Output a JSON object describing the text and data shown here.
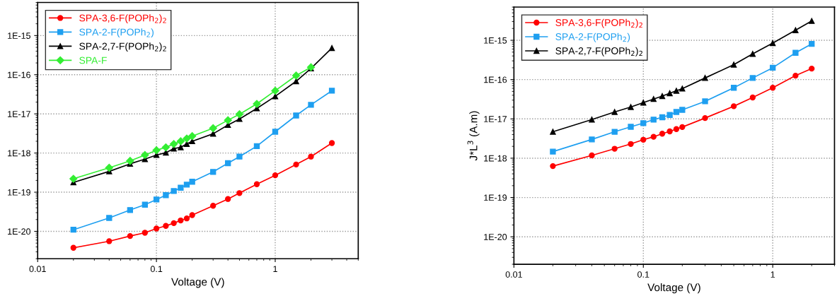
{
  "chart_data": [
    {
      "type": "line",
      "xlabel": "Voltage (V)",
      "log": "xy",
      "grid": true,
      "legend": "top left",
      "line_style": "solid",
      "xlim": [
        0.01,
        5
      ],
      "xticks": [
        0.01,
        0.1,
        1
      ],
      "ylim": [
        2e-21,
        7e-15
      ],
      "yticks": [
        {
          "value": 1e-20,
          "label": "1E-20"
        },
        {
          "value": 1e-19,
          "label": "1E-19"
        },
        {
          "value": 1e-18,
          "label": "1E-18"
        },
        {
          "value": 1e-17,
          "label": "1E-17"
        },
        {
          "value": 1e-16,
          "label": "1E-16"
        },
        {
          "value": 1e-15,
          "label": "1E-15"
        }
      ],
      "x": [
        0.02,
        0.04,
        0.06,
        0.08,
        0.1,
        0.12,
        0.14,
        0.16,
        0.18,
        0.2,
        0.3,
        0.4,
        0.5,
        0.7,
        1,
        1.5,
        2,
        3
      ],
      "series": [
        {
          "name": "SPA-3,6-F(POPh$_{2}$)$_{2}$",
          "color": "#ff0000",
          "marker": "circle",
          "values": [
            3.8e-21,
            5.6e-21,
            7.6e-21,
            9.2e-21,
            1.18e-20,
            1.38e-20,
            1.62e-20,
            1.9e-20,
            2.14e-20,
            2.6e-20,
            4.5e-20,
            6.7e-20,
            9.5e-20,
            1.6e-19,
            2.7e-19,
            5.1e-19,
            8.1e-19,
            1.8e-18
          ]
        },
        {
          "name": "SPA-2-F(POPh$_{2}$)",
          "color": "#1e9ff0",
          "marker": "square",
          "values": [
            1.1e-20,
            2.2e-20,
            3.5e-20,
            4.8e-20,
            6.5e-20,
            8.4e-20,
            1.07e-19,
            1.3e-19,
            1.56e-19,
            1.85e-19,
            3.3e-19,
            5.5e-19,
            8.1e-19,
            1.5e-18,
            3.5e-18,
            9.1e-18,
            1.7e-17,
            3.9e-17
          ]
        },
        {
          "name": "SPA-2,7-F(POPh$_{2}$)$_{2}$",
          "color": "#000000",
          "marker": "triangle",
          "values": [
            1.78e-19,
            3.4e-19,
            5.3e-19,
            7e-19,
            8.9e-19,
            1.02e-18,
            1.3e-18,
            1.4e-18,
            1.7e-18,
            2e-18,
            3.1e-18,
            5.2e-18,
            7.4e-18,
            1.38e-17,
            2.8e-17,
            6.8e-17,
            1.45e-16,
            4.8e-16
          ]
        },
        {
          "name": "SPA-F",
          "color": "#33ee33",
          "marker": "diamond",
          "x": [
            0.02,
            0.04,
            0.06,
            0.08,
            0.1,
            0.12,
            0.14,
            0.16,
            0.18,
            0.2,
            0.3,
            0.4,
            0.5,
            0.7,
            1,
            1.5,
            2
          ],
          "values": [
            2.2e-19,
            4.2e-19,
            6.3e-19,
            8.9e-19,
            1.18e-18,
            1.4e-18,
            1.7e-18,
            2e-18,
            2.35e-18,
            2.7e-18,
            4.3e-18,
            6.9e-18,
            9.8e-18,
            1.8e-17,
            3.9e-17,
            9.5e-17,
            1.55e-16
          ]
        }
      ]
    },
    {
      "type": "line",
      "xlabel": "Voltage (V)",
      "ylabel": "J*L$^{3}$ (A.m)",
      "log": "xy",
      "grid": true,
      "legend": "top left",
      "line_style": "solid",
      "xlim": [
        0.01,
        3
      ],
      "xticks": [
        0.01,
        0.1,
        1
      ],
      "ylim": [
        2e-21,
        7e-15
      ],
      "yticks": [
        {
          "value": 1e-20,
          "label": "1E-20"
        },
        {
          "value": 1e-19,
          "label": "1E-19"
        },
        {
          "value": 1e-18,
          "label": "1E-18"
        },
        {
          "value": 1e-17,
          "label": "1E-17"
        },
        {
          "value": 1e-16,
          "label": "1E-16"
        },
        {
          "value": 1e-15,
          "label": "1E-15"
        }
      ],
      "x": [
        0.02,
        0.04,
        0.06,
        0.08,
        0.1,
        0.12,
        0.14,
        0.16,
        0.18,
        0.2,
        0.3,
        0.5,
        0.7,
        1,
        1.5,
        2
      ],
      "series": [
        {
          "name": "SPA-3,6-F(POPh$_{2}$)$_{2}$",
          "color": "#ff0000",
          "marker": "circle",
          "values": [
            6.3e-19,
            1.18e-18,
            1.74e-18,
            2.3e-18,
            2.95e-18,
            3.5e-18,
            4.2e-18,
            4.8e-18,
            5.5e-18,
            6.2e-18,
            1.05e-17,
            2.1e-17,
            3.5e-17,
            6.2e-17,
            1.26e-16,
            1.9e-16
          ]
        },
        {
          "name": "SPA-2-F(POPh$_{2}$)",
          "color": "#1e9ff0",
          "marker": "square",
          "values": [
            1.47e-18,
            3e-18,
            4.7e-18,
            6.3e-18,
            7.8e-18,
            9.6e-18,
            1.1e-17,
            1.26e-17,
            1.5e-17,
            1.7e-17,
            2.8e-17,
            6.2e-17,
            1.1e-16,
            2e-16,
            4.8e-16,
            8.1e-16
          ]
        },
        {
          "name": "SPA-2,7-F(POPh$_{2}$)$_{2}$",
          "color": "#000000",
          "marker": "triangle",
          "values": [
            4.7e-18,
            9.6e-18,
            1.5e-17,
            2e-17,
            2.6e-17,
            3.2e-17,
            3.8e-17,
            4.5e-17,
            5.2e-17,
            5.9e-17,
            1.1e-16,
            2.4e-16,
            4.5e-16,
            8.5e-16,
            1.8e-15,
            3.1e-15
          ]
        }
      ]
    }
  ]
}
